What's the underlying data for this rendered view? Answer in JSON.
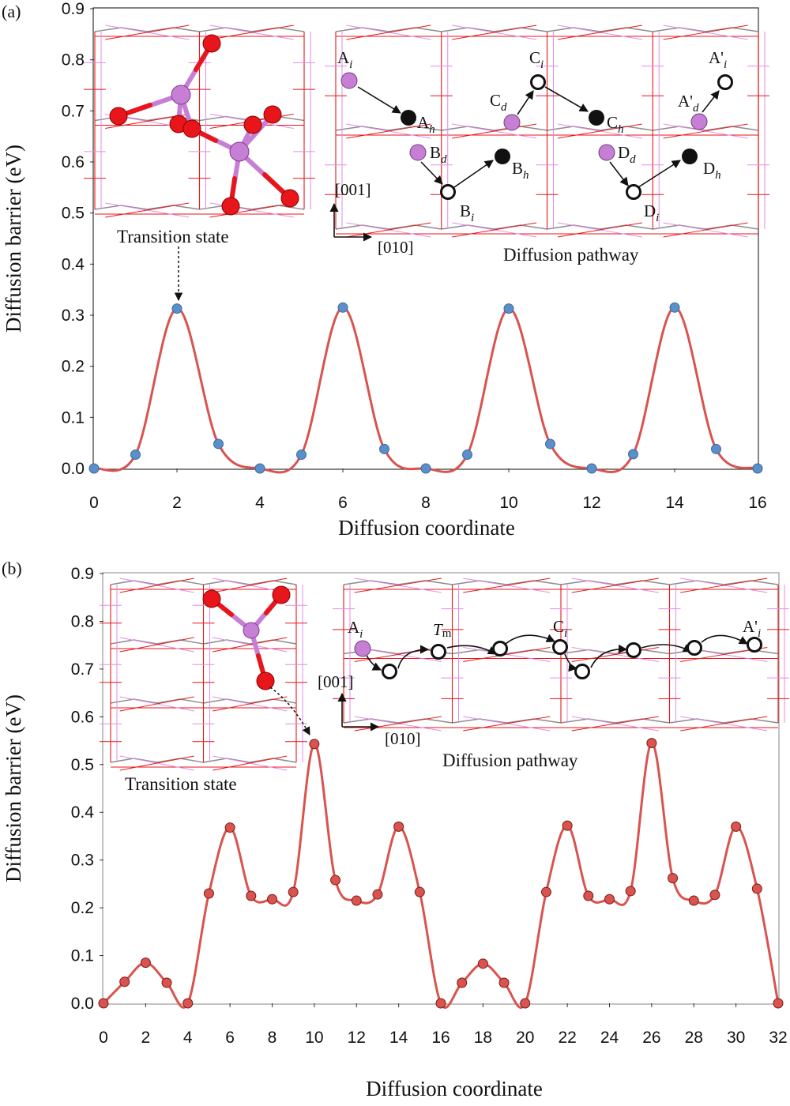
{
  "colors": {
    "curve": "#d9534f",
    "marker_a_fill": "#5b8fc9",
    "marker_b_fill": "#d9534f",
    "oxygen": "#e8161b",
    "metal": "#c77fd6",
    "grid_gray": "#8c8c8c",
    "lattice_pink": "#e28be6"
  },
  "chart_data": [
    {
      "panel": "(a)",
      "type": "line",
      "xlabel": "Diffusion coordinate",
      "ylabel": "Diffusion barrier (eV)",
      "xlim": [
        0,
        16
      ],
      "ylim": [
        0,
        0.9
      ],
      "xticks": [
        "0",
        "2",
        "4",
        "6",
        "8",
        "10",
        "12",
        "14",
        "16"
      ],
      "yticks": [
        "0.0",
        "0.1",
        "0.2",
        "0.3",
        "0.4",
        "0.5",
        "0.6",
        "0.7",
        "0.8",
        "0.9"
      ],
      "grid": false,
      "series": [
        {
          "x": [
            0,
            1,
            2,
            3,
            4,
            5,
            6,
            7,
            8,
            9,
            10,
            11,
            12,
            13,
            14,
            15,
            16
          ],
          "y": [
            0.0,
            0.027,
            0.313,
            0.048,
            0.0,
            0.027,
            0.315,
            0.038,
            0.0,
            0.027,
            0.313,
            0.048,
            0.0,
            0.028,
            0.315,
            0.038,
            0.0
          ]
        }
      ],
      "annotations": {
        "transition_state": "Transition state",
        "pathway": "Diffusion pathway",
        "dir_vertical": "[001]",
        "dir_horizontal": "[010]",
        "sites": [
          {
            "main": "A",
            "sub": "i",
            "prime": ""
          },
          {
            "main": "A",
            "sub": "h",
            "prime": ""
          },
          {
            "main": "B",
            "sub": "d",
            "prime": ""
          },
          {
            "main": "B",
            "sub": "i",
            "prime": ""
          },
          {
            "main": "B",
            "sub": "h",
            "prime": ""
          },
          {
            "main": "C",
            "sub": "d",
            "prime": ""
          },
          {
            "main": "C",
            "sub": "i",
            "prime": ""
          },
          {
            "main": "C",
            "sub": "h",
            "prime": ""
          },
          {
            "main": "A",
            "sub": "d",
            "prime": "'"
          },
          {
            "main": "A",
            "sub": "i",
            "prime": "'"
          },
          {
            "main": "D",
            "sub": "d",
            "prime": ""
          },
          {
            "main": "D",
            "sub": "i",
            "prime": ""
          },
          {
            "main": "D",
            "sub": "h",
            "prime": ""
          }
        ]
      }
    },
    {
      "panel": "(b)",
      "type": "line",
      "xlabel": "Diffusion coordinate",
      "ylabel": "Diffusion barrier (eV)",
      "xlim": [
        0,
        32
      ],
      "ylim": [
        0,
        0.9
      ],
      "xticks": [
        "0",
        "2",
        "4",
        "6",
        "8",
        "10",
        "12",
        "14",
        "16",
        "18",
        "20",
        "22",
        "24",
        "26",
        "28",
        "30",
        "32"
      ],
      "yticks": [
        "0.0",
        "0.1",
        "0.2",
        "0.3",
        "0.4",
        "0.5",
        "0.6",
        "0.7",
        "0.8",
        "0.9"
      ],
      "grid": false,
      "series": [
        {
          "x": [
            0,
            1,
            2,
            3,
            4,
            5,
            6,
            7,
            8,
            9,
            10,
            11,
            12,
            13,
            14,
            15,
            16,
            17,
            18,
            19,
            20,
            21,
            22,
            23,
            24,
            25,
            26,
            27,
            28,
            29,
            30,
            31,
            32
          ],
          "y": [
            0.0,
            0.045,
            0.085,
            0.043,
            0.0,
            0.23,
            0.368,
            0.225,
            0.218,
            0.233,
            0.543,
            0.258,
            0.215,
            0.228,
            0.37,
            0.233,
            0.0,
            0.043,
            0.083,
            0.043,
            0.0,
            0.233,
            0.372,
            0.225,
            0.218,
            0.235,
            0.545,
            0.262,
            0.215,
            0.227,
            0.37,
            0.24,
            0.0
          ]
        }
      ],
      "annotations": {
        "transition_state": "Transition state",
        "pathway": "Diffusion pathway",
        "dir_vertical": "[001]",
        "dir_horizontal": "[010]",
        "sites": [
          {
            "main": "A",
            "sub": "i",
            "prime": ""
          },
          {
            "main": "T",
            "sub": "m",
            "prime": ""
          },
          {
            "main": "C",
            "sub": "i",
            "prime": ""
          },
          {
            "main": "A",
            "sub": "i",
            "prime": "'"
          }
        ]
      }
    }
  ]
}
